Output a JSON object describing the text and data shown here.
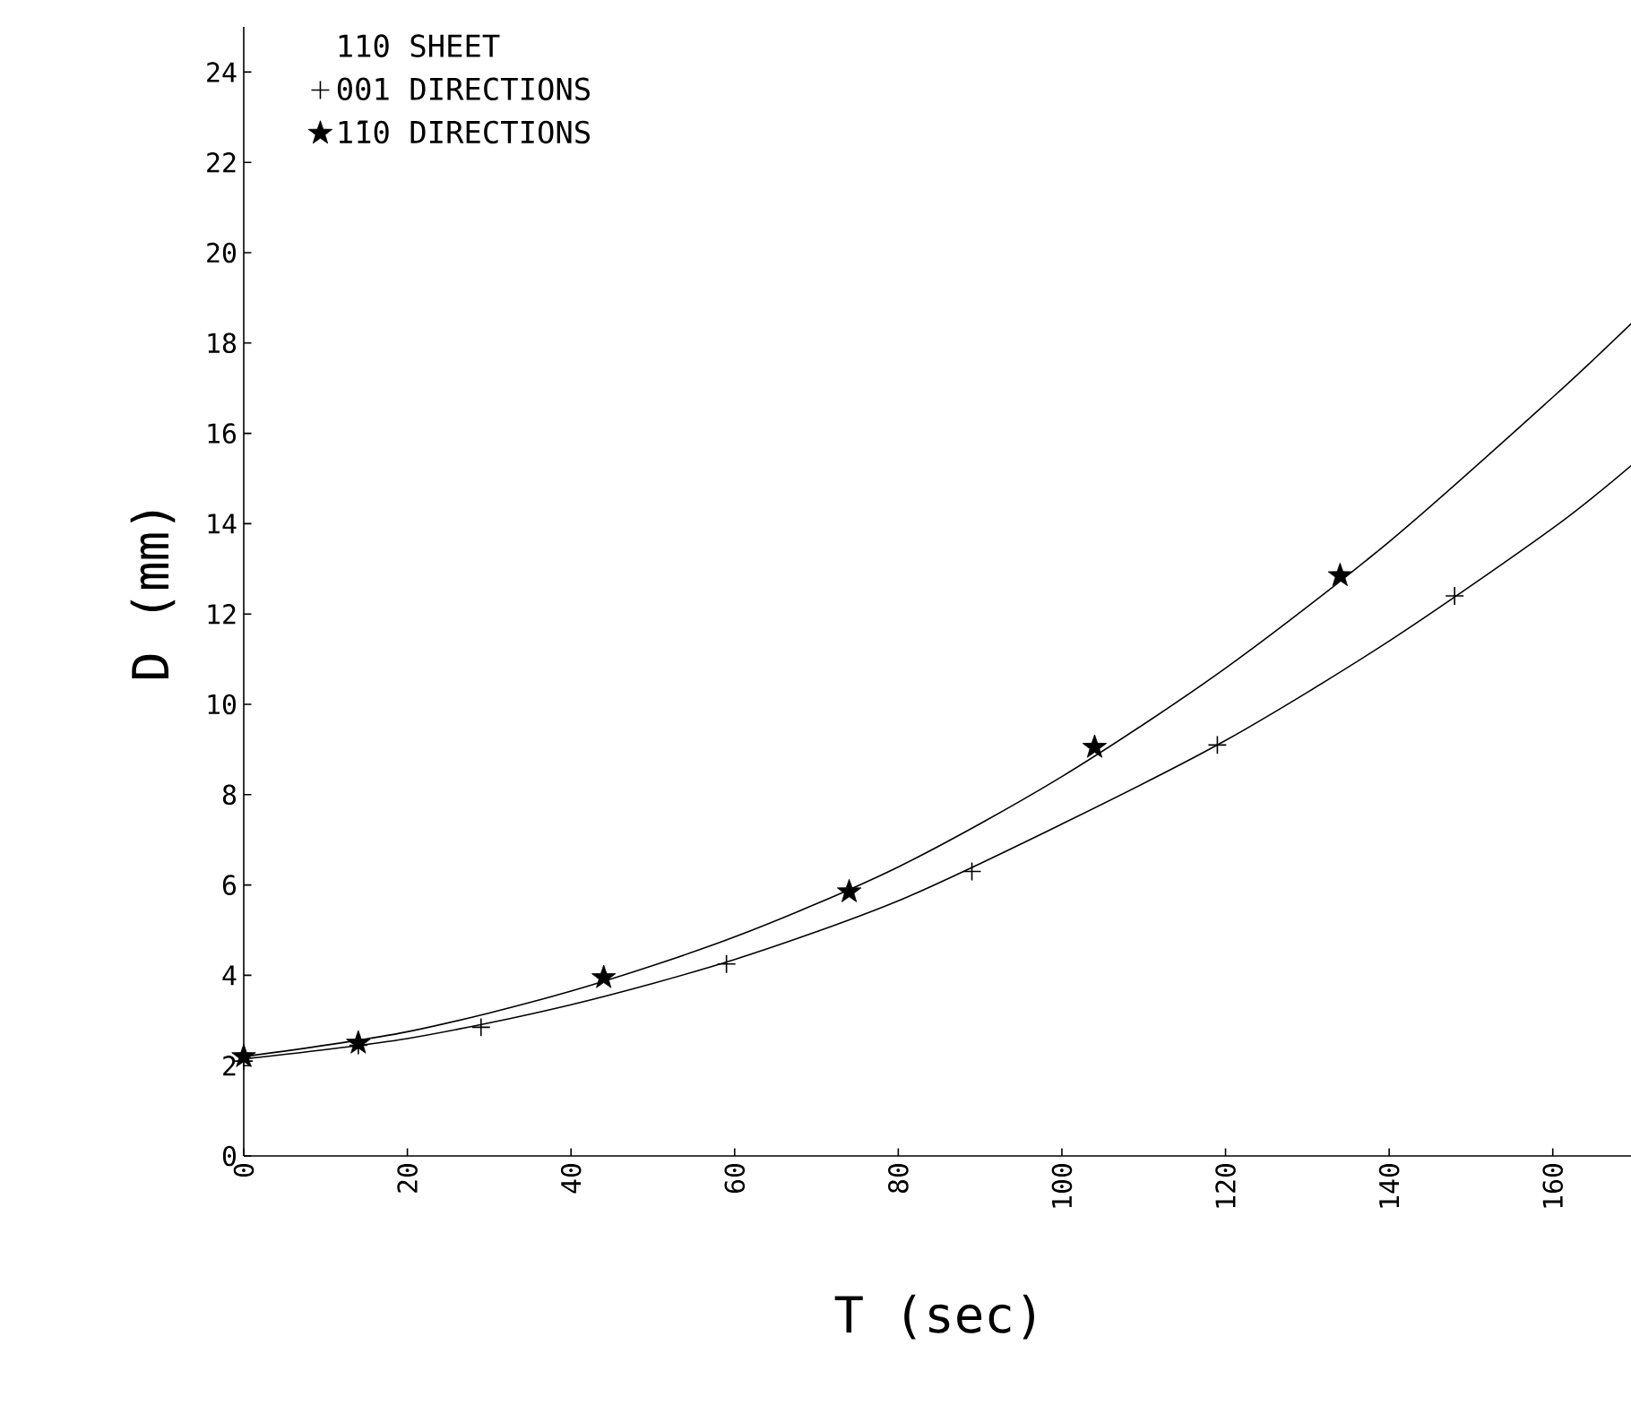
{
  "chart_data": {
    "type": "scatter",
    "legend_title": "110 SHEET",
    "xlabel": "T (sec)",
    "ylabel": "D (mm)",
    "xlim": [
      0,
      170
    ],
    "ylim": [
      0,
      25
    ],
    "xticks": [
      0,
      20,
      40,
      60,
      80,
      100,
      120,
      140,
      160
    ],
    "yticks": [
      0,
      2,
      4,
      6,
      8,
      10,
      12,
      14,
      16,
      18,
      20,
      22,
      24
    ],
    "grid": false,
    "legend": "top left",
    "series": [
      {
        "name": "001 DIRECTIONS",
        "marker": "cross",
        "color": "#000000",
        "x": [
          0,
          14,
          29,
          59,
          89,
          119,
          148
        ],
        "values": [
          2.1,
          2.45,
          2.85,
          4.25,
          6.3,
          9.1,
          12.4
        ]
      },
      {
        "name": "1̄10 DIRECTIONS",
        "marker": "star",
        "color": "#000000",
        "x": [
          0,
          14,
          44,
          74,
          104,
          134
        ],
        "values": [
          2.2,
          2.5,
          3.95,
          5.85,
          9.05,
          12.85
        ]
      },
      {
        "type": "line",
        "marker": "none",
        "color": "#000000",
        "x": [
          0,
          20,
          40,
          60,
          80,
          100,
          120,
          140,
          160,
          170
        ],
        "values": [
          2.15,
          2.6,
          3.35,
          4.35,
          5.65,
          7.35,
          9.2,
          11.4,
          13.9,
          15.35
        ]
      },
      {
        "type": "line",
        "marker": "none",
        "color": "#000000",
        "x": [
          0,
          20,
          40,
          60,
          80,
          100,
          120,
          140,
          160,
          170
        ],
        "values": [
          2.2,
          2.75,
          3.65,
          4.85,
          6.4,
          8.4,
          10.8,
          13.6,
          16.8,
          18.5
        ]
      }
    ]
  }
}
